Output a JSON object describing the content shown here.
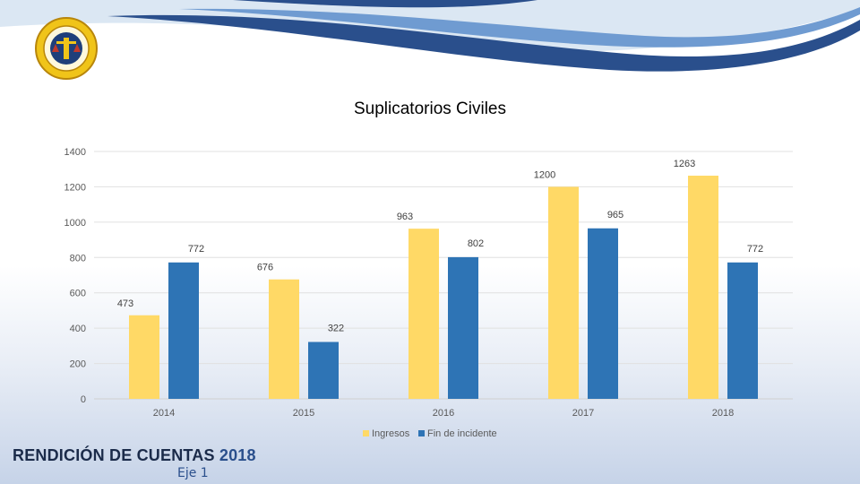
{
  "footer": {
    "title_main": "RENDICIÓN DE CUENTAS",
    "title_year": "2018",
    "subtitle": "Eje 1"
  },
  "colors": {
    "ingresos": "#ffd966",
    "fin": "#2e74b5",
    "swoosh_dark": "#2a4f8c",
    "swoosh_light": "#bcd3ea"
  },
  "icons": {
    "logo": "seal-logo-icon"
  },
  "chart_data": {
    "type": "bar",
    "title": "Suplicatorios Civiles",
    "categories": [
      "2014",
      "2015",
      "2016",
      "2017",
      "2018"
    ],
    "series": [
      {
        "name": "Ingresos",
        "values": [
          473,
          676,
          963,
          1200,
          1263
        ]
      },
      {
        "name": "Fin de incidente",
        "values": [
          772,
          322,
          802,
          965,
          772
        ]
      }
    ],
    "ylim": [
      0,
      1400
    ],
    "yticks": [
      0,
      200,
      400,
      600,
      800,
      1000,
      1200,
      1400
    ],
    "grid": true,
    "legend": "bottom"
  }
}
